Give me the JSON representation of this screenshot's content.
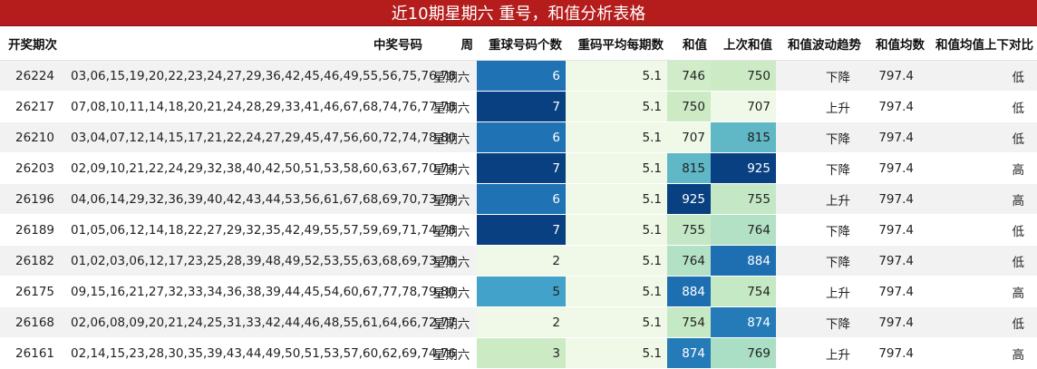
{
  "title": "近10期星期六 重号，和值分析表格",
  "headers": [
    "开奖期次",
    "中奖号码",
    "周",
    "重球号码个数",
    "重码平均每期数",
    "和值",
    "上次和值",
    "和值波动趋势",
    "和值均数",
    "和值均值上下对比"
  ],
  "rows": [
    {
      "period": "26224",
      "numbers": "03,06,15,19,20,22,23,24,27,29,36,42,45,46,49,55,56,75,76,78",
      "week": "星期六",
      "repeat": 6,
      "avg_repeat": "5.1",
      "sum": 746,
      "prev_sum": 750,
      "trend": "下降",
      "sum_avg": "797.4",
      "compare": "低"
    },
    {
      "period": "26217",
      "numbers": "07,08,10,11,14,18,20,21,24,28,29,33,41,46,67,68,74,76,77,78",
      "week": "星期六",
      "repeat": 7,
      "avg_repeat": "5.1",
      "sum": 750,
      "prev_sum": 707,
      "trend": "上升",
      "sum_avg": "797.4",
      "compare": "低"
    },
    {
      "period": "26210",
      "numbers": "03,04,07,12,14,15,17,21,22,24,27,29,45,47,56,60,72,74,78,80",
      "week": "星期六",
      "repeat": 6,
      "avg_repeat": "5.1",
      "sum": 707,
      "prev_sum": 815,
      "trend": "下降",
      "sum_avg": "797.4",
      "compare": "低"
    },
    {
      "period": "26203",
      "numbers": "02,09,10,21,22,24,29,32,38,40,42,50,51,53,58,60,63,67,70,74",
      "week": "星期六",
      "repeat": 7,
      "avg_repeat": "5.1",
      "sum": 815,
      "prev_sum": 925,
      "trend": "下降",
      "sum_avg": "797.4",
      "compare": "高"
    },
    {
      "period": "26196",
      "numbers": "04,06,14,29,32,36,39,40,42,43,44,53,56,61,67,68,69,70,73,79",
      "week": "星期六",
      "repeat": 6,
      "avg_repeat": "5.1",
      "sum": 925,
      "prev_sum": 755,
      "trend": "上升",
      "sum_avg": "797.4",
      "compare": "高"
    },
    {
      "period": "26189",
      "numbers": "01,05,06,12,14,18,22,27,29,32,35,42,49,55,57,59,69,71,74,78",
      "week": "星期六",
      "repeat": 7,
      "avg_repeat": "5.1",
      "sum": 755,
      "prev_sum": 764,
      "trend": "下降",
      "sum_avg": "797.4",
      "compare": "低"
    },
    {
      "period": "26182",
      "numbers": "01,02,03,06,12,17,23,25,28,39,48,49,52,53,55,63,68,69,73,78",
      "week": "星期六",
      "repeat": 2,
      "avg_repeat": "5.1",
      "sum": 764,
      "prev_sum": 884,
      "trend": "下降",
      "sum_avg": "797.4",
      "compare": "低"
    },
    {
      "period": "26175",
      "numbers": "09,15,16,21,27,32,33,34,36,38,39,44,45,54,60,67,77,78,79,80",
      "week": "星期六",
      "repeat": 5,
      "avg_repeat": "5.1",
      "sum": 884,
      "prev_sum": 754,
      "trend": "上升",
      "sum_avg": "797.4",
      "compare": "高"
    },
    {
      "period": "26168",
      "numbers": "02,06,08,09,20,21,24,25,31,33,42,44,46,48,55,61,64,66,72,77",
      "week": "星期六",
      "repeat": 2,
      "avg_repeat": "5.1",
      "sum": 754,
      "prev_sum": 874,
      "trend": "下降",
      "sum_avg": "797.4",
      "compare": "低"
    },
    {
      "period": "26161",
      "numbers": "02,14,15,23,28,30,35,39,43,44,49,50,51,53,57,60,62,69,74,76",
      "week": "星期六",
      "repeat": 3,
      "avg_repeat": "5.1",
      "sum": 874,
      "prev_sum": 769,
      "trend": "上升",
      "sum_avg": "797.4",
      "compare": "高"
    }
  ]
}
